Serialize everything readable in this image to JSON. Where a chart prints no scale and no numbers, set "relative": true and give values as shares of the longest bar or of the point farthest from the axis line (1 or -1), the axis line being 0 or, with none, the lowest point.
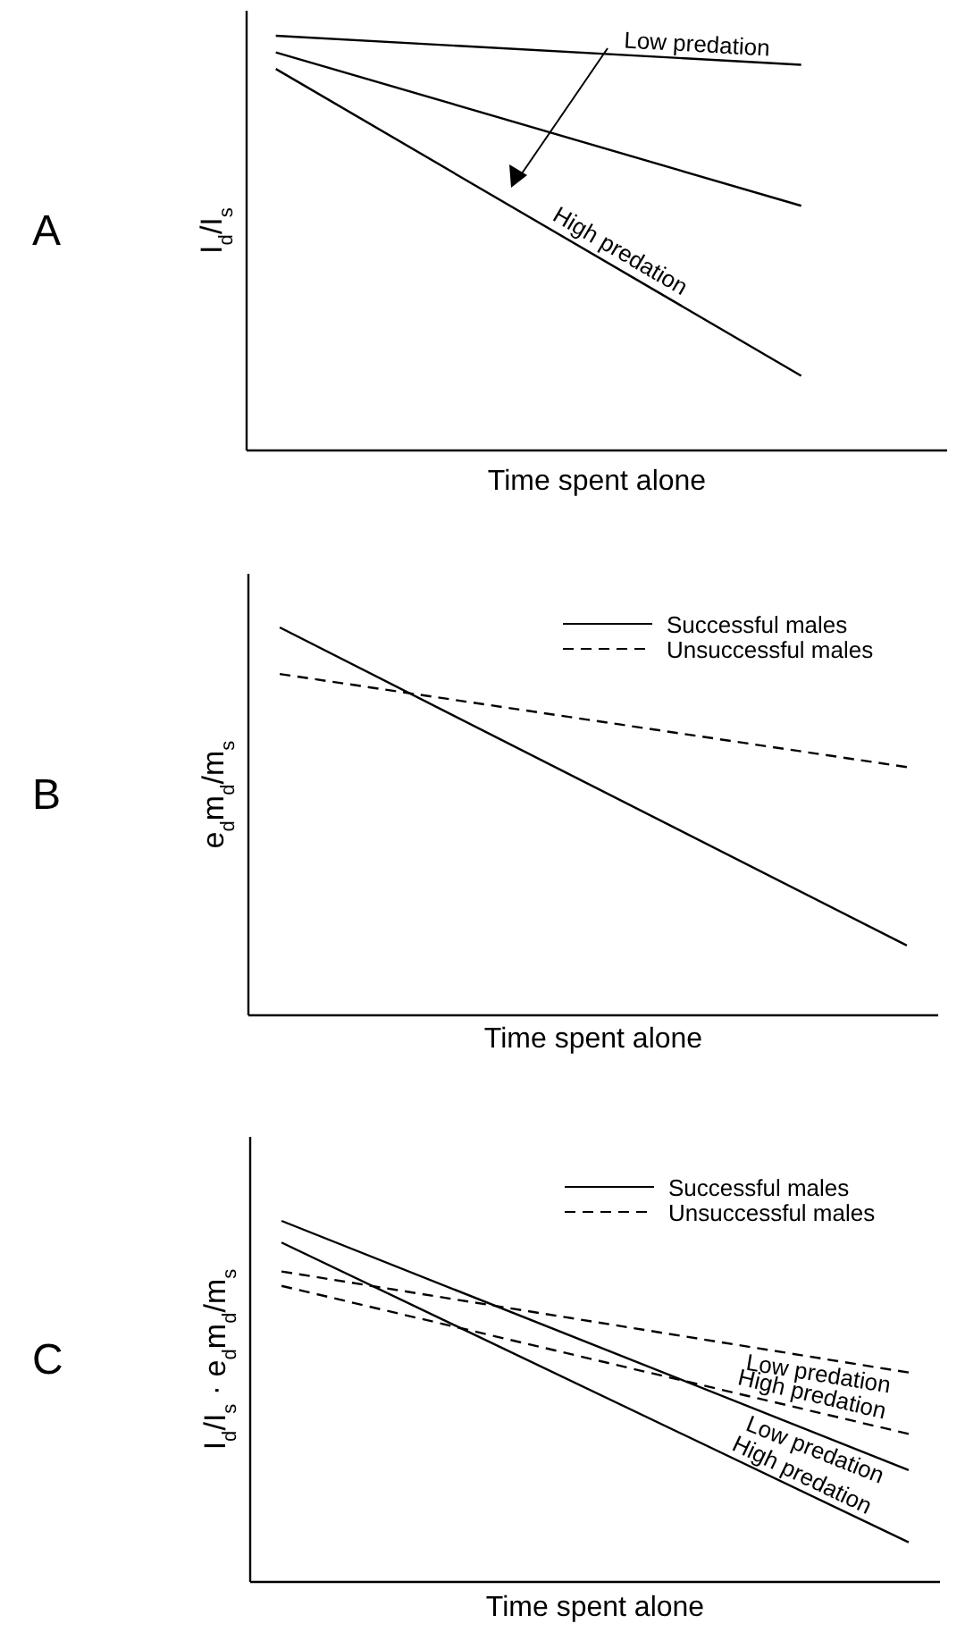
{
  "chart_data": [
    {
      "type": "line",
      "title": "A",
      "xlabel": "Time spent alone",
      "ylabel": "I$_{d}$/I$_{s}$",
      "relative": true,
      "categories": [
        null,
        null,
        null,
        null,
        null,
        null,
        null,
        null,
        null,
        null,
        null,
        null
      ],
      "line_style": "solid",
      "legend": false,
      "series": [
        {
          "name": "Low predation",
          "color": "#000000",
          "values": [
            1,
            null,
            null,
            null,
            null,
            null,
            null,
            null,
            null,
            0.93,
            null,
            null
          ]
        },
        {
          "color": "#000000",
          "values": [
            0.96,
            null,
            null,
            null,
            null,
            null,
            null,
            null,
            null,
            0.59,
            null,
            null
          ]
        },
        {
          "name": "High predation",
          "color": "#000000",
          "values": [
            0.92,
            null,
            null,
            null,
            null,
            null,
            null,
            null,
            null,
            0.18,
            null,
            null
          ]
        }
      ]
    },
    {
      "type": "line",
      "title": "B",
      "xlabel": "Time spent alone",
      "ylabel": "e$_{d}$m$_{d}$/m$_{s}$",
      "relative": true,
      "categories": [
        null,
        null,
        null,
        null,
        null,
        null,
        null,
        null,
        null,
        null,
        null
      ],
      "legend": "top right",
      "series": [
        {
          "name": "Successful males",
          "color": "#000000",
          "line_style": "solid",
          "values": [
            1,
            null,
            null,
            null,
            null,
            null,
            null,
            null,
            null,
            null,
            0.18
          ]
        },
        {
          "name": "Unsuccessful males",
          "color": "#000000",
          "line_style": "dashed",
          "values": [
            0.88,
            null,
            null,
            null,
            null,
            null,
            null,
            null,
            null,
            null,
            0.64
          ]
        }
      ]
    },
    {
      "type": "line",
      "title": "C",
      "xlabel": "Time spent alone",
      "ylabel": "I$_{d}$/I$_{s}$ · e$_{d}$m$_{d}$/m$_{s}$",
      "relative": true,
      "categories": [
        null,
        null,
        null,
        null,
        null,
        null,
        null,
        null,
        null,
        null,
        null
      ],
      "annotations": [
        "Successful males",
        "Unsuccessful males"
      ],
      "series": [
        {
          "name": "Low predation",
          "color": "#000000",
          "line_style": "solid",
          "values": [
            1,
            null,
            null,
            null,
            null,
            null,
            null,
            null,
            null,
            null,
            0.31
          ]
        },
        {
          "name": "High predation",
          "color": "#000000",
          "line_style": "solid",
          "values": [
            0.94,
            null,
            null,
            null,
            null,
            null,
            null,
            null,
            null,
            null,
            0.11
          ]
        },
        {
          "name": "Low predation",
          "color": "#000000",
          "line_style": "dashed",
          "values": [
            0.86,
            null,
            null,
            null,
            null,
            null,
            null,
            null,
            null,
            null,
            0.58
          ]
        },
        {
          "name": "High predation",
          "color": "#000000",
          "line_style": "dashed",
          "values": [
            0.82,
            null,
            null,
            null,
            null,
            null,
            null,
            null,
            null,
            null,
            0.41
          ]
        }
      ]
    }
  ]
}
